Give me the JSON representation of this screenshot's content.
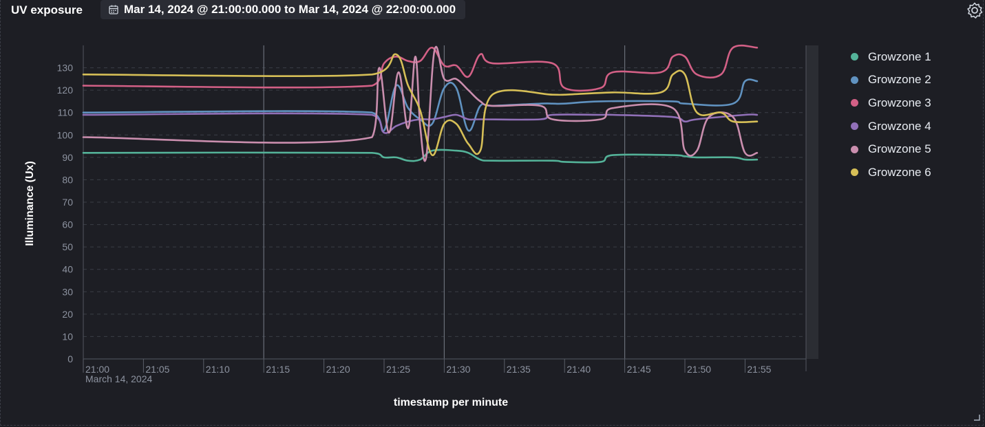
{
  "panel": {
    "title": "UV exposure",
    "time_range": "Mar 14, 2024 @ 21:00:00.000 to Mar 14, 2024 @ 22:00:00.000"
  },
  "icons": {
    "calendar": "calendar-icon",
    "settings": "gear-icon",
    "resize": "resize-handle-icon"
  },
  "chart_data": {
    "type": "line",
    "title": "",
    "xlabel": "timestamp per minute",
    "ylabel": "Illuminance (Ux)",
    "x_tick_labels": [
      "21:00",
      "21:05",
      "21:10",
      "21:15",
      "21:20",
      "21:25",
      "21:30",
      "21:35",
      "21:40",
      "21:45",
      "21:50",
      "21:55"
    ],
    "x_sublabel": "March 14, 2024",
    "x_range": [
      "21:00",
      "22:00"
    ],
    "ylim": [
      0,
      140
    ],
    "y_ticks": [
      0,
      10,
      20,
      30,
      40,
      50,
      60,
      70,
      80,
      90,
      100,
      110,
      120,
      130
    ],
    "grid": "horizontal dashed",
    "legend_position": "right",
    "series": [
      {
        "name": "Growzone 1",
        "color": "#54b399",
        "points": [
          [
            "21:00",
            92
          ],
          [
            "21:24",
            92
          ],
          [
            "21:25",
            90
          ],
          [
            "21:26",
            90
          ],
          [
            "21:27",
            88.5
          ],
          [
            "21:28",
            89
          ],
          [
            "21:29",
            93
          ],
          [
            "21:31",
            93
          ],
          [
            "21:32",
            92
          ],
          [
            "21:33",
            89
          ],
          [
            "21:34",
            88.5
          ],
          [
            "21:39",
            88.5
          ],
          [
            "21:40",
            88
          ],
          [
            "21:43",
            88
          ],
          [
            "21:44",
            91
          ],
          [
            "21:49",
            91
          ],
          [
            "21:50",
            90.5
          ],
          [
            "21:51",
            90
          ],
          [
            "21:54",
            90
          ],
          [
            "21:55",
            89
          ],
          [
            "21:56",
            89
          ]
        ]
      },
      {
        "name": "Growzone 2",
        "color": "#6092c0",
        "points": [
          [
            "21:00",
            110
          ],
          [
            "21:24",
            110
          ],
          [
            "21:25",
            102
          ],
          [
            "21:26",
            122
          ],
          [
            "21:27",
            112
          ],
          [
            "21:28",
            107
          ],
          [
            "21:29",
            105
          ],
          [
            "21:30",
            121
          ],
          [
            "21:31",
            121
          ],
          [
            "21:32",
            102
          ],
          [
            "21:33",
            113
          ],
          [
            "21:34",
            113
          ],
          [
            "21:38",
            114
          ],
          [
            "21:39",
            114
          ],
          [
            "21:40",
            114
          ],
          [
            "21:43",
            115
          ],
          [
            "21:49",
            115
          ],
          [
            "21:50",
            114
          ],
          [
            "21:54",
            114
          ],
          [
            "21:55",
            124
          ],
          [
            "21:56",
            124
          ]
        ]
      },
      {
        "name": "Growzone 3",
        "color": "#d36086",
        "points": [
          [
            "21:00",
            122
          ],
          [
            "21:24",
            122
          ],
          [
            "21:25",
            132
          ],
          [
            "21:26",
            135
          ],
          [
            "21:27",
            133
          ],
          [
            "21:28",
            133
          ],
          [
            "21:29",
            139
          ],
          [
            "21:30",
            131
          ],
          [
            "21:31",
            131
          ],
          [
            "21:32",
            126
          ],
          [
            "21:33",
            136
          ],
          [
            "21:34",
            132
          ],
          [
            "21:39",
            132
          ],
          [
            "21:40",
            121
          ],
          [
            "21:43",
            121
          ],
          [
            "21:44",
            128
          ],
          [
            "21:48",
            128
          ],
          [
            "21:49",
            135
          ],
          [
            "21:50",
            135
          ],
          [
            "21:51",
            127
          ],
          [
            "21:53",
            127
          ],
          [
            "21:54",
            139
          ],
          [
            "21:56",
            139
          ]
        ]
      },
      {
        "name": "Growzone 4",
        "color": "#9170b8",
        "points": [
          [
            "21:00",
            109
          ],
          [
            "21:24",
            109
          ],
          [
            "21:25",
            101
          ],
          [
            "21:26",
            104
          ],
          [
            "21:27",
            106
          ],
          [
            "21:28",
            107
          ],
          [
            "21:29",
            107
          ],
          [
            "21:30",
            108
          ],
          [
            "21:31",
            109
          ],
          [
            "21:32",
            107
          ],
          [
            "21:33",
            107
          ],
          [
            "21:38",
            107
          ],
          [
            "21:39",
            109
          ],
          [
            "21:43",
            109
          ],
          [
            "21:44",
            109
          ],
          [
            "21:49",
            108
          ],
          [
            "21:50",
            106
          ],
          [
            "21:51",
            107
          ],
          [
            "21:55",
            109
          ],
          [
            "21:56",
            109
          ]
        ]
      },
      {
        "name": "Growzone 5",
        "color": "#ca8eae",
        "points": [
          [
            "21:00",
            99
          ],
          [
            "21:24",
            99
          ],
          [
            "21:24.6",
            130
          ],
          [
            "21:25.4",
            101
          ],
          [
            "21:26.2",
            128
          ],
          [
            "21:27",
            103
          ],
          [
            "21:27.6",
            135
          ],
          [
            "21:28",
            104
          ],
          [
            "21:28.5",
            90
          ],
          [
            "21:29.2",
            138
          ],
          [
            "21:30",
            125
          ],
          [
            "21:31",
            125
          ],
          [
            "21:32",
            120
          ],
          [
            "21:33",
            115
          ],
          [
            "21:34",
            113
          ],
          [
            "21:38",
            113
          ],
          [
            "21:39",
            107
          ],
          [
            "21:43",
            107
          ],
          [
            "21:44",
            112
          ],
          [
            "21:49",
            112
          ],
          [
            "21:50",
            93
          ],
          [
            "21:51",
            93
          ],
          [
            "21:52",
            108
          ],
          [
            "21:54",
            108
          ],
          [
            "21:55",
            92
          ],
          [
            "21:56",
            92
          ]
        ]
      },
      {
        "name": "Growzone 6",
        "color": "#d6bf57",
        "points": [
          [
            "21:00",
            127
          ],
          [
            "21:24",
            127
          ],
          [
            "21:26",
            136
          ],
          [
            "21:27",
            122
          ],
          [
            "21:28",
            111
          ],
          [
            "21:29",
            91
          ],
          [
            "21:30",
            105
          ],
          [
            "21:31",
            105
          ],
          [
            "21:32",
            96
          ],
          [
            "21:33",
            93
          ],
          [
            "21:34",
            118
          ],
          [
            "21:39",
            118
          ],
          [
            "21:40",
            118
          ],
          [
            "21:44",
            119
          ],
          [
            "21:48",
            119
          ],
          [
            "21:49",
            127
          ],
          [
            "21:50",
            127
          ],
          [
            "21:51",
            110
          ],
          [
            "21:53",
            110
          ],
          [
            "21:54",
            106
          ],
          [
            "21:56",
            106
          ]
        ]
      }
    ]
  }
}
